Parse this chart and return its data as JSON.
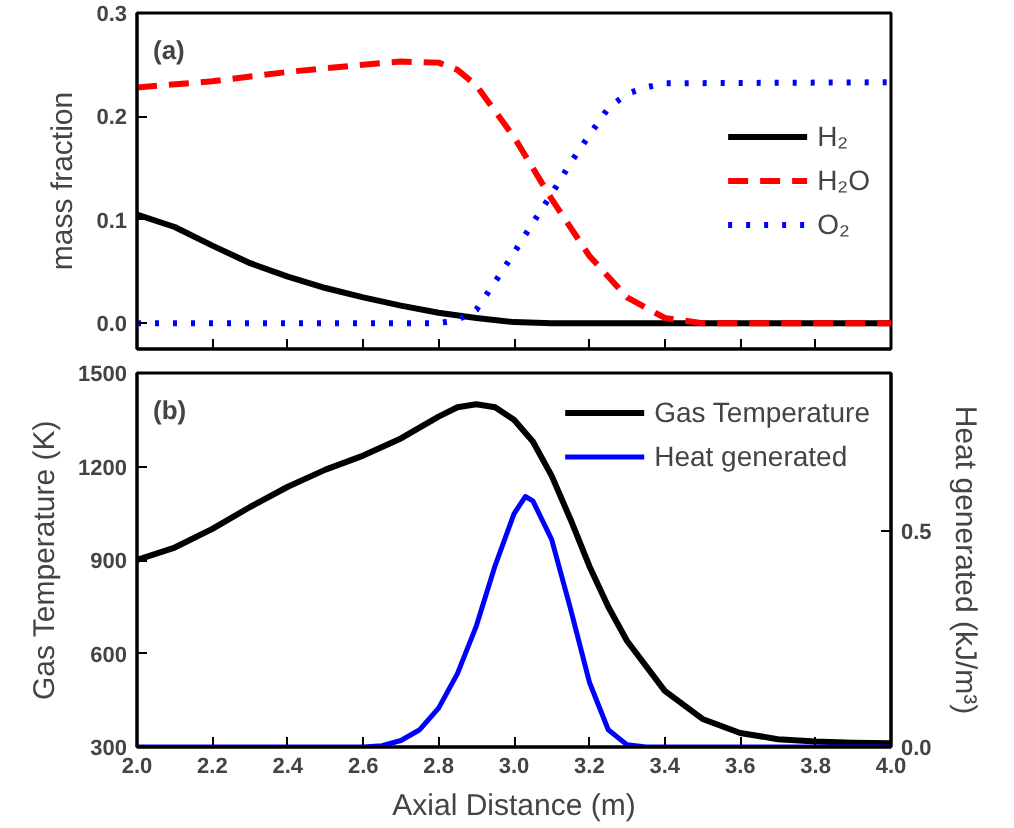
{
  "chart_data": [
    {
      "type": "line",
      "annotations": [
        "(a)"
      ],
      "ylabel": "mass fraction",
      "xlim": [
        2.0,
        4.0
      ],
      "ylim": [
        -0.025,
        0.3
      ],
      "xticks": [
        2.0,
        2.2,
        2.4,
        2.6,
        2.8,
        3.0,
        3.2,
        3.4,
        3.6,
        3.8,
        4.0
      ],
      "yticks": [
        {
          "value": 0,
          "label": "0.0"
        },
        0.1,
        0.2,
        0.3
      ],
      "tick_labels": "y",
      "legend": "right",
      "series": [
        {
          "name": "H₂",
          "color": "#000000",
          "line_style": "solid",
          "x": [
            2.0,
            2.1,
            2.2,
            2.3,
            2.4,
            2.5,
            2.6,
            2.7,
            2.8,
            2.9,
            3.0,
            3.1,
            4.0
          ],
          "values": [
            0.105,
            0.093,
            0.075,
            0.058,
            0.045,
            0.034,
            0.025,
            0.017,
            0.01,
            0.005,
            0.001,
            0,
            0
          ]
        },
        {
          "name": "H₂O",
          "color": "#ff0000",
          "line_style": "dashed",
          "x": [
            2.0,
            2.2,
            2.4,
            2.6,
            2.7,
            2.8,
            2.85,
            2.9,
            3.0,
            3.1,
            3.2,
            3.3,
            3.4,
            3.5,
            4.0
          ],
          "values": [
            0.228,
            0.234,
            0.243,
            0.25,
            0.253,
            0.252,
            0.245,
            0.23,
            0.18,
            0.12,
            0.065,
            0.025,
            0.005,
            0,
            0
          ]
        },
        {
          "name": "O₂",
          "color": "#0000ff",
          "line_style": "dotted",
          "x": [
            2.0,
            2.8,
            2.85,
            2.9,
            2.95,
            3.0,
            3.05,
            3.1,
            3.15,
            3.2,
            3.25,
            3.3,
            3.35,
            3.4,
            4.0
          ],
          "values": [
            0,
            0,
            0.003,
            0.013,
            0.04,
            0.068,
            0.097,
            0.125,
            0.155,
            0.182,
            0.208,
            0.222,
            0.228,
            0.232,
            0.233
          ]
        }
      ]
    },
    {
      "type": "line",
      "annotations": [
        "(b)"
      ],
      "xlabel": "Axial Distance (m)",
      "ylabel": "Gas Temperature (K)",
      "y2label": "Heat generated (kJ/m³)",
      "xlim": [
        2.0,
        4.0
      ],
      "ylim": [
        300,
        1500
      ],
      "y2lim": [
        0,
        0.866
      ],
      "xticks": [
        {
          "value": 2.0,
          "label": "2.0"
        },
        2.2,
        2.4,
        2.6,
        2.8,
        {
          "value": 3.0,
          "label": "3.0"
        },
        3.2,
        3.4,
        3.6,
        3.8,
        {
          "value": 4.0,
          "label": "4.0"
        }
      ],
      "yticks": [
        300,
        600,
        900,
        1200,
        1500
      ],
      "y2ticks": [
        {
          "value": 0,
          "label": "0.0"
        },
        0.5
      ],
      "legend": "top right",
      "series": [
        {
          "name": "Gas Temperature",
          "color": "#000000",
          "x": [
            2.0,
            2.1,
            2.2,
            2.3,
            2.4,
            2.5,
            2.6,
            2.7,
            2.8,
            2.85,
            2.9,
            2.95,
            3.0,
            3.05,
            3.1,
            3.15,
            3.2,
            3.25,
            3.3,
            3.4,
            3.5,
            3.6,
            3.7,
            3.8,
            3.9,
            4.0
          ],
          "values": [
            900,
            940,
            1000,
            1070,
            1135,
            1190,
            1235,
            1290,
            1360,
            1390,
            1400,
            1390,
            1350,
            1280,
            1170,
            1030,
            880,
            750,
            640,
            480,
            390,
            345,
            325,
            318,
            314,
            312
          ]
        },
        {
          "name": "Heat generated",
          "color": "#0000ff",
          "axis": "y2",
          "x": [
            2.0,
            2.6,
            2.65,
            2.7,
            2.75,
            2.8,
            2.85,
            2.9,
            2.95,
            3.0,
            3.03,
            3.05,
            3.1,
            3.15,
            3.2,
            3.25,
            3.3,
            3.35,
            4.0
          ],
          "values": [
            0,
            0,
            0.003,
            0.015,
            0.04,
            0.09,
            0.17,
            0.28,
            0.42,
            0.54,
            0.58,
            0.57,
            0.48,
            0.32,
            0.15,
            0.04,
            0.005,
            0,
            0
          ]
        }
      ]
    }
  ]
}
